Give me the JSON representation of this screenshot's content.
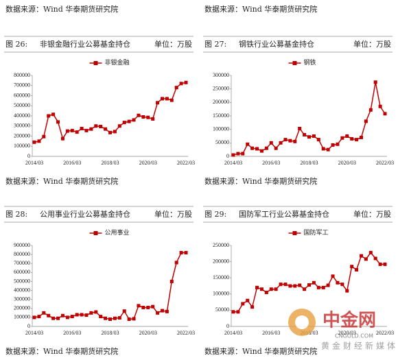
{
  "top_sources": [
    "数据来源：Wind 华泰期货研究院",
    "数据来源：Wind 华泰期货研究院"
  ],
  "chart_data": [
    {
      "type": "line",
      "figure_label": "图 26:",
      "title": "非银金融行业公募基金持仓",
      "unit": "单位：万股",
      "source": "数据来源：Wind 华泰期货研究院",
      "categories": [
        "2014/03",
        null,
        null,
        null,
        null,
        null,
        null,
        null,
        "2016/03",
        null,
        null,
        null,
        null,
        null,
        null,
        null,
        "2018/03",
        null,
        null,
        null,
        null,
        null,
        null,
        null,
        "2020/03",
        null,
        null,
        null,
        null,
        null,
        null,
        null,
        "2022/03"
      ],
      "series": [
        {
          "name": "非银金融",
          "color": "#c00000",
          "values": [
            140000,
            150000,
            195000,
            400000,
            415000,
            340000,
            175000,
            250000,
            255000,
            240000,
            275000,
            255000,
            270000,
            300000,
            295000,
            270000,
            235000,
            245000,
            300000,
            335000,
            345000,
            360000,
            405000,
            390000,
            385000,
            370000,
            530000,
            570000,
            570000,
            555000,
            680000,
            720000,
            730000
          ]
        }
      ],
      "ylim": [
        0,
        800000
      ],
      "yticks": [
        0,
        100000,
        200000,
        300000,
        400000,
        500000,
        600000,
        700000,
        800000
      ]
    },
    {
      "type": "line",
      "figure_label": "图 27:",
      "title": "钢铁行业公募基金持仓",
      "unit": "单位：万股",
      "source": "数据来源：Wind 华泰期货研究院",
      "categories": [
        "2014/03",
        null,
        null,
        null,
        null,
        null,
        null,
        null,
        "2016/03",
        null,
        null,
        null,
        null,
        null,
        null,
        null,
        "2018/03",
        null,
        null,
        null,
        null,
        null,
        null,
        null,
        "2020/03",
        null,
        null,
        null,
        null,
        null,
        null,
        null,
        "2022/03"
      ],
      "series": [
        {
          "name": "钢铁",
          "color": "#c00000",
          "values": [
            5000,
            10000,
            10000,
            45000,
            30000,
            28000,
            20000,
            30000,
            50000,
            30000,
            50000,
            62000,
            58000,
            55000,
            103000,
            80000,
            72000,
            75000,
            62000,
            28000,
            25000,
            42000,
            45000,
            68000,
            75000,
            65000,
            62000,
            70000,
            130000,
            172000,
            275000,
            185000,
            158000
          ]
        }
      ],
      "ylim": [
        0,
        300000
      ],
      "yticks": [
        0,
        50000,
        100000,
        150000,
        200000,
        250000,
        300000
      ]
    },
    {
      "type": "line",
      "figure_label": "图 28:",
      "title": "公用事业行业公募基金持仓",
      "unit": "单位：万股",
      "source": "数据来源：Wind 华泰期货研究院",
      "categories": [
        "2014/03",
        null,
        null,
        null,
        null,
        null,
        null,
        null,
        "2016/03",
        null,
        null,
        null,
        null,
        null,
        null,
        null,
        "2018/03",
        null,
        null,
        null,
        null,
        null,
        null,
        null,
        "2020/03",
        null,
        null,
        null,
        null,
        null,
        null,
        null,
        "2022/03"
      ],
      "series": [
        {
          "name": "公用事业",
          "color": "#c00000",
          "values": [
            100000,
            110000,
            150000,
            120000,
            90000,
            90000,
            120000,
            100000,
            110000,
            130000,
            130000,
            125000,
            150000,
            160000,
            110000,
            90000,
            80000,
            90000,
            95000,
            170000,
            80000,
            85000,
            230000,
            210000,
            210000,
            220000,
            150000,
            175000,
            165000,
            500000,
            710000,
            820000,
            820000
          ]
        }
      ],
      "ylim": [
        0,
        900000
      ],
      "yticks": [
        0,
        100000,
        200000,
        300000,
        400000,
        500000,
        600000,
        700000,
        800000,
        900000
      ]
    },
    {
      "type": "line",
      "figure_label": "图 29:",
      "title": "国防军工行业公募基金持仓",
      "unit": "单位：万股",
      "source": "数据来源：Wind 华泰期货研究院",
      "categories": [
        "2014/03",
        null,
        null,
        null,
        null,
        null,
        null,
        null,
        "2016/03",
        null,
        null,
        null,
        null,
        null,
        null,
        null,
        "2018/03",
        null,
        null,
        null,
        null,
        null,
        null,
        null,
        "2020/03",
        null,
        null,
        null,
        null,
        null,
        null,
        null,
        "2022/03"
      ],
      "series": [
        {
          "name": "国防军工",
          "color": "#c00000",
          "values": [
            45000,
            45000,
            70000,
            80000,
            60000,
            120000,
            115000,
            105000,
            115000,
            115000,
            130000,
            130000,
            125000,
            125000,
            127000,
            115000,
            128000,
            135000,
            120000,
            120000,
            127000,
            155000,
            135000,
            130000,
            110000,
            185000,
            175000,
            218000,
            208000,
            228000,
            210000,
            192000,
            192000
          ]
        }
      ],
      "ylim": [
        0,
        250000
      ],
      "yticks": [
        0,
        50000,
        100000,
        150000,
        200000,
        250000
      ]
    }
  ],
  "watermark": {
    "name": "中金网",
    "url": "CNGOLD.COM",
    "slogan": "黄金财经新媒体"
  }
}
